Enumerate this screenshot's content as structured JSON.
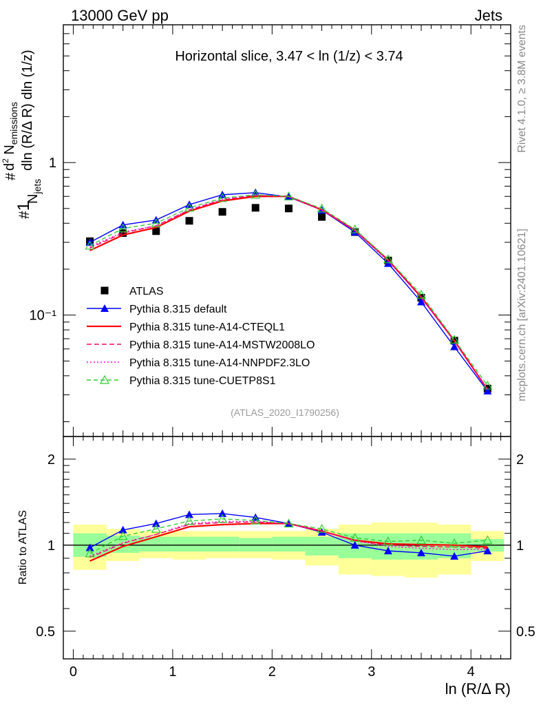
{
  "header": {
    "left": "13000 GeV pp",
    "right": "Jets"
  },
  "side_labels": {
    "rivet": "Rivet 4.1.0, ≥ 3.8M events",
    "mcplots": "mcplots.cern.ch [arXiv:2401.10621]"
  },
  "chart_data": [
    {
      "type": "scatter",
      "title": "Horizontal slice, 3.47 < ln (1/z) < 3.74",
      "watermark": "(ATLAS_2020_I1790256)",
      "xlabel": "ln (R/Δ R)",
      "ylabel": "#frac{1}{N_jets}#frac{d^2 N_emissions}{dln (R/Δ R) dln (1/z)}",
      "yscale": "log",
      "xlim": [
        -0.1,
        4.4
      ],
      "ylim": [
        0.016,
        8.0
      ],
      "y_tick_labels": [
        {
          "value": 0.1,
          "label": "10⁻¹"
        },
        {
          "value": 1,
          "label": "1"
        }
      ],
      "x": [
        0.167,
        0.5,
        0.833,
        1.167,
        1.5,
        1.833,
        2.167,
        2.5,
        2.833,
        3.167,
        3.5,
        3.833,
        4.167
      ],
      "series": [
        {
          "name": "ATLAS",
          "color": "#000000",
          "style": "data",
          "values": [
            0.305,
            0.345,
            0.355,
            0.415,
            0.475,
            0.505,
            0.5,
            0.44,
            0.35,
            0.228,
            0.13,
            0.068,
            0.033
          ]
        },
        {
          "name": "Pythia 8.315 default",
          "color": "#0000ff",
          "style": "tri-filled",
          "values": [
            0.3,
            0.39,
            0.42,
            0.53,
            0.615,
            0.635,
            0.595,
            0.488,
            0.35,
            0.218,
            0.122,
            0.062,
            0.0318
          ]
        },
        {
          "name": "Pythia 8.315 tune-A14-CTEQL1",
          "color": "#ff0000",
          "style": "solid",
          "values": [
            0.265,
            0.335,
            0.375,
            0.48,
            0.56,
            0.6,
            0.6,
            0.49,
            0.36,
            0.23,
            0.131,
            0.068,
            0.0325
          ]
        },
        {
          "name": "Pythia 8.315 tune-A14-MSTW2008LO",
          "color": "#ff0066",
          "style": "dashed",
          "values": [
            0.275,
            0.345,
            0.385,
            0.49,
            0.57,
            0.61,
            0.6,
            0.49,
            0.358,
            0.228,
            0.13,
            0.068,
            0.0325
          ]
        },
        {
          "name": "Pythia 8.315 tune-A14-NNPDF2.3LO",
          "color": "#ff00cc",
          "style": "dotted",
          "values": [
            0.28,
            0.35,
            0.385,
            0.49,
            0.575,
            0.61,
            0.6,
            0.49,
            0.358,
            0.226,
            0.13,
            0.067,
            0.0322
          ]
        },
        {
          "name": "Pythia 8.315 tune-CUETP8S1",
          "color": "#33cc33",
          "style": "tri-open",
          "values": [
            0.285,
            0.37,
            0.4,
            0.505,
            0.585,
            0.615,
            0.6,
            0.5,
            0.365,
            0.232,
            0.136,
            0.069,
            0.0345
          ]
        }
      ]
    },
    {
      "type": "line",
      "ylabel": "Ratio to ATLAS",
      "xlabel": "ln (R/Δ R)",
      "yscale": "log",
      "ylim": [
        0.4,
        2.4
      ],
      "x_tick_labels": [
        "0",
        "1",
        "2",
        "3",
        "4"
      ],
      "y_tick_labels": [
        "0.5",
        "1",
        "2"
      ],
      "x_edges": [
        0,
        0.333,
        0.667,
        1.0,
        1.333,
        1.667,
        2.0,
        2.333,
        2.667,
        3.0,
        3.333,
        3.667,
        4.0,
        4.333
      ],
      "band_yellow": [
        [
          0.82,
          1.18
        ],
        [
          0.88,
          1.14
        ],
        [
          0.9,
          1.12
        ],
        [
          0.89,
          1.12
        ],
        [
          0.9,
          1.12
        ],
        [
          0.9,
          1.12
        ],
        [
          0.89,
          1.12
        ],
        [
          0.85,
          1.14
        ],
        [
          0.79,
          1.18
        ],
        [
          0.78,
          1.2
        ],
        [
          0.77,
          1.2
        ],
        [
          0.79,
          1.18
        ],
        [
          0.88,
          1.12
        ]
      ],
      "band_green": [
        [
          0.91,
          1.1
        ],
        [
          0.94,
          1.08
        ],
        [
          0.95,
          1.07
        ],
        [
          0.95,
          1.07
        ],
        [
          0.95,
          1.07
        ],
        [
          0.95,
          1.06
        ],
        [
          0.95,
          1.07
        ],
        [
          0.92,
          1.07
        ],
        [
          0.9,
          1.1
        ],
        [
          0.89,
          1.1
        ],
        [
          0.89,
          1.1
        ],
        [
          0.9,
          1.1
        ],
        [
          0.95,
          1.05
        ]
      ],
      "series": [
        {
          "name": "Pythia 8.315 default",
          "values": [
            0.98,
            1.13,
            1.19,
            1.28,
            1.29,
            1.25,
            1.19,
            1.11,
            1.0,
            0.955,
            0.94,
            0.915,
            0.955
          ]
        },
        {
          "name": "Pythia 8.315 tune-A14-CTEQL1",
          "values": [
            0.88,
            0.99,
            1.07,
            1.16,
            1.18,
            1.19,
            1.19,
            1.12,
            1.04,
            1.01,
            1.005,
            1.0,
            0.985
          ]
        },
        {
          "name": "Pythia 8.315 tune-A14-MSTW2008LO",
          "values": [
            0.905,
            1.015,
            1.09,
            1.18,
            1.2,
            1.205,
            1.19,
            1.12,
            1.035,
            1.0,
            0.99,
            0.985,
            0.975
          ]
        },
        {
          "name": "Pythia 8.315 tune-A14-NNPDF2.3LO",
          "values": [
            0.915,
            1.02,
            1.09,
            1.19,
            1.21,
            1.21,
            1.19,
            1.12,
            1.035,
            0.99,
            0.975,
            0.965,
            0.965
          ]
        },
        {
          "name": "Pythia 8.315 tune-CUETP8S1",
          "values": [
            0.935,
            1.075,
            1.14,
            1.215,
            1.235,
            1.22,
            1.19,
            1.14,
            1.06,
            1.03,
            1.04,
            1.015,
            1.04
          ]
        }
      ]
    }
  ]
}
